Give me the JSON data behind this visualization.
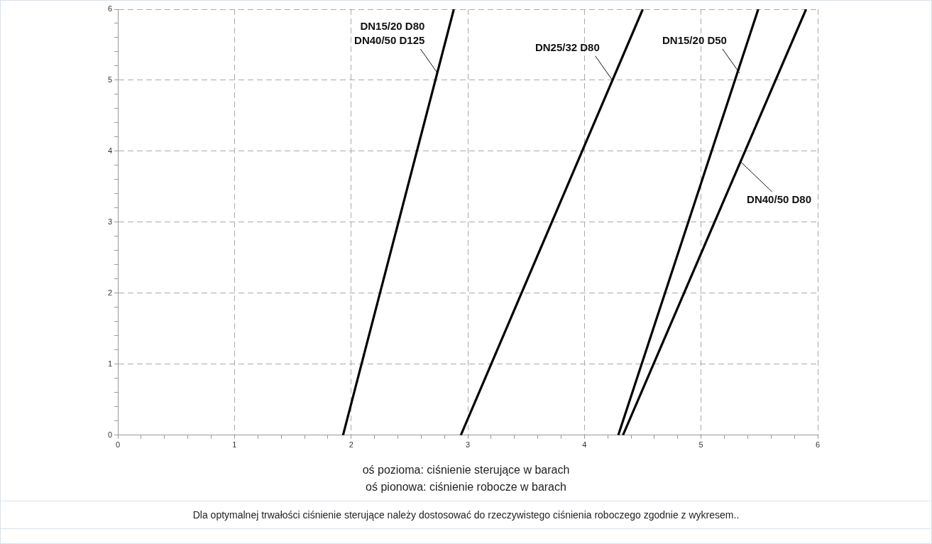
{
  "chart_data": {
    "type": "line",
    "xlabel": "oś pozioma: ciśnienie sterujące w barach",
    "series": [
      {
        "color": "#000000",
        "x": [
          1.93,
          2.88
        ],
        "values": [
          0,
          6
        ]
      },
      {
        "color": "#000000",
        "x": [
          2.94,
          4.5
        ],
        "values": [
          0,
          6
        ]
      },
      {
        "color": "#000000",
        "x": [
          4.29,
          5.49
        ],
        "values": [
          0,
          6
        ]
      },
      {
        "color": "#000000",
        "x": [
          4.33,
          5.9
        ],
        "values": [
          0,
          6
        ]
      }
    ],
    "xlim": [
      0,
      6
    ],
    "ylim": [
      0,
      6
    ],
    "xticks": [
      0,
      {
        "value": 0.2,
        "label": null
      },
      {
        "value": 0.4,
        "label": null
      },
      {
        "value": 0.6,
        "label": null
      },
      {
        "value": 0.8,
        "label": null
      },
      1,
      {
        "value": 1.2,
        "label": null
      },
      {
        "value": 1.4,
        "label": null
      },
      {
        "value": 1.6,
        "label": null
      },
      {
        "value": 1.8,
        "label": null
      },
      2,
      {
        "value": 2.2,
        "label": null
      },
      {
        "value": 2.4,
        "label": null
      },
      {
        "value": 2.6,
        "label": null
      },
      {
        "value": 2.8,
        "label": null
      },
      3,
      {
        "value": 3.2,
        "label": null
      },
      {
        "value": 3.4,
        "label": null
      },
      {
        "value": 3.6,
        "label": null
      },
      {
        "value": 3.8,
        "label": null
      },
      4,
      {
        "value": 4.2,
        "label": null
      },
      {
        "value": 4.4,
        "label": null
      },
      {
        "value": 4.6,
        "label": null
      },
      {
        "value": 4.8,
        "label": null
      },
      5,
      {
        "value": 5.2,
        "label": null
      },
      {
        "value": 5.4,
        "label": null
      },
      {
        "value": 5.6,
        "label": null
      },
      {
        "value": 5.8,
        "label": null
      },
      6
    ],
    "yticks": [
      0,
      {
        "value": 0.2,
        "label": null
      },
      {
        "value": 0.4,
        "label": null
      },
      {
        "value": 0.6,
        "label": null
      },
      {
        "value": 0.8,
        "label": null
      },
      1,
      {
        "value": 1.2,
        "label": null
      },
      {
        "value": 1.4,
        "label": null
      },
      {
        "value": 1.6,
        "label": null
      },
      {
        "value": 1.8,
        "label": null
      },
      2,
      {
        "value": 2.2,
        "label": null
      },
      {
        "value": 2.4,
        "label": null
      },
      {
        "value": 2.6,
        "label": null
      },
      {
        "value": 2.8,
        "label": null
      },
      3,
      {
        "value": 3.2,
        "label": null
      },
      {
        "value": 3.4,
        "label": null
      },
      {
        "value": 3.6,
        "label": null
      },
      {
        "value": 3.8,
        "label": null
      },
      4,
      {
        "value": 4.2,
        "label": null
      },
      {
        "value": 4.4,
        "label": null
      },
      {
        "value": 4.6,
        "label": null
      },
      {
        "value": 4.8,
        "label": null
      },
      5,
      {
        "value": 5.2,
        "label": null
      },
      {
        "value": 5.4,
        "label": null
      },
      {
        "value": 5.6,
        "label": null
      },
      {
        "value": 5.8,
        "label": null
      },
      6
    ],
    "grid": true,
    "marker": "none",
    "line_style": "solid",
    "legend": false,
    "annotations": [
      {
        "text": "DN15/20 D80\nDN40/50 D125",
        "x": 2.74,
        "y": 5.1
      },
      {
        "text": "DN25/32 D80",
        "x": 4.24,
        "y": 5
      },
      {
        "text": "DN15/20 D50",
        "x": 5.33,
        "y": 5.1
      },
      {
        "text": "DN40/50 D80",
        "x": 5.34,
        "y": 3.85
      },
      "oś pionowa: ciśnienie robocze w barach",
      "Dla optymalnej trwałości ciśnienie sterujące należy dostosować do rzeczywistego ciśnienia roboczego zgodnie z wykresem.."
    ]
  }
}
